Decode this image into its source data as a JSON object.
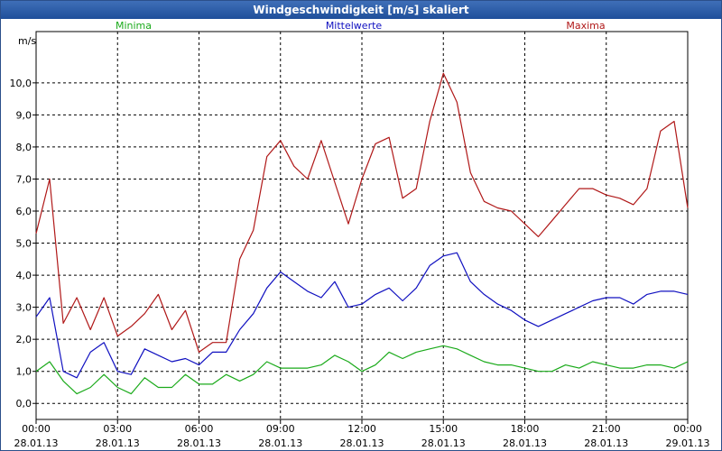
{
  "window": {
    "title": "Windgeschwindigkeit [m/s] skaliert"
  },
  "chart_data": {
    "type": "line",
    "title": "Windgeschwindigkeit [m/s] skaliert",
    "ylabel": "m/s",
    "xlabel": "",
    "ylim": [
      -0.5,
      11.6
    ],
    "grid": true,
    "legend_placement": "top",
    "yticks": [
      "0,0",
      "1,0",
      "2,0",
      "3,0",
      "4,0",
      "5,0",
      "6,0",
      "7,0",
      "8,0",
      "9,0",
      "10,0"
    ],
    "xticks": [
      {
        "time": "00:00",
        "date": "28.01.13"
      },
      {
        "time": "03:00",
        "date": "28.01.13"
      },
      {
        "time": "06:00",
        "date": "28.01.13"
      },
      {
        "time": "09:00",
        "date": "28.01.13"
      },
      {
        "time": "12:00",
        "date": "28.01.13"
      },
      {
        "time": "15:00",
        "date": "28.01.13"
      },
      {
        "time": "18:00",
        "date": "28.01.13"
      },
      {
        "time": "21:00",
        "date": "28.01.13"
      },
      {
        "time": "00:00",
        "date": "29.01.13"
      }
    ],
    "x_hours": [
      0,
      0.5,
      1,
      1.5,
      2,
      2.5,
      3,
      3.5,
      4,
      4.5,
      5,
      5.5,
      6,
      6.5,
      7,
      7.5,
      8,
      8.5,
      9,
      9.5,
      10,
      10.5,
      11,
      11.5,
      12,
      12.5,
      13,
      13.5,
      14,
      14.5,
      15,
      15.5,
      16,
      16.5,
      17,
      17.5,
      18,
      18.5,
      19,
      19.5,
      20,
      20.5,
      21,
      21.5,
      22,
      22.5,
      23,
      23.5,
      24
    ],
    "series": [
      {
        "name": "Minima",
        "color": "#1aaa1a",
        "values": [
          1.0,
          1.3,
          0.7,
          0.3,
          0.5,
          0.9,
          0.5,
          0.3,
          0.8,
          0.5,
          0.5,
          0.9,
          0.6,
          0.6,
          0.9,
          0.7,
          0.9,
          1.3,
          1.1,
          1.1,
          1.1,
          1.2,
          1.5,
          1.3,
          1.0,
          1.2,
          1.6,
          1.4,
          1.6,
          1.7,
          1.8,
          1.7,
          1.5,
          1.3,
          1.2,
          1.2,
          1.1,
          1.0,
          1.0,
          1.2,
          1.1,
          1.3,
          1.2,
          1.1,
          1.1,
          1.2,
          1.2,
          1.1,
          1.3
        ]
      },
      {
        "name": "Mittelwerte",
        "color": "#1010c0",
        "values": [
          2.7,
          3.3,
          1.0,
          0.8,
          1.6,
          1.9,
          1.0,
          0.9,
          1.7,
          1.5,
          1.3,
          1.4,
          1.2,
          1.6,
          1.6,
          2.3,
          2.8,
          3.6,
          4.1,
          3.8,
          3.5,
          3.3,
          3.8,
          3.0,
          3.1,
          3.4,
          3.6,
          3.2,
          3.6,
          4.3,
          4.6,
          4.7,
          3.8,
          3.4,
          3.1,
          2.9,
          2.6,
          2.4,
          2.6,
          2.8,
          3.0,
          3.2,
          3.3,
          3.3,
          3.1,
          3.4,
          3.5,
          3.5,
          3.4
        ]
      },
      {
        "name": "Maxima",
        "color": "#b01818",
        "values": [
          5.3,
          7.0,
          2.5,
          3.3,
          2.3,
          3.3,
          2.1,
          2.4,
          2.8,
          3.4,
          2.3,
          2.9,
          1.6,
          1.9,
          1.9,
          4.5,
          5.4,
          7.7,
          8.2,
          7.4,
          7.0,
          8.2,
          6.9,
          5.6,
          7.0,
          8.1,
          8.3,
          6.4,
          6.7,
          8.8,
          10.3,
          9.4,
          7.2,
          6.3,
          6.1,
          6.0,
          5.6,
          5.2,
          5.7,
          6.2,
          6.7,
          6.7,
          6.5,
          6.4,
          6.2,
          6.7,
          8.5,
          8.8,
          6.1
        ]
      }
    ]
  }
}
